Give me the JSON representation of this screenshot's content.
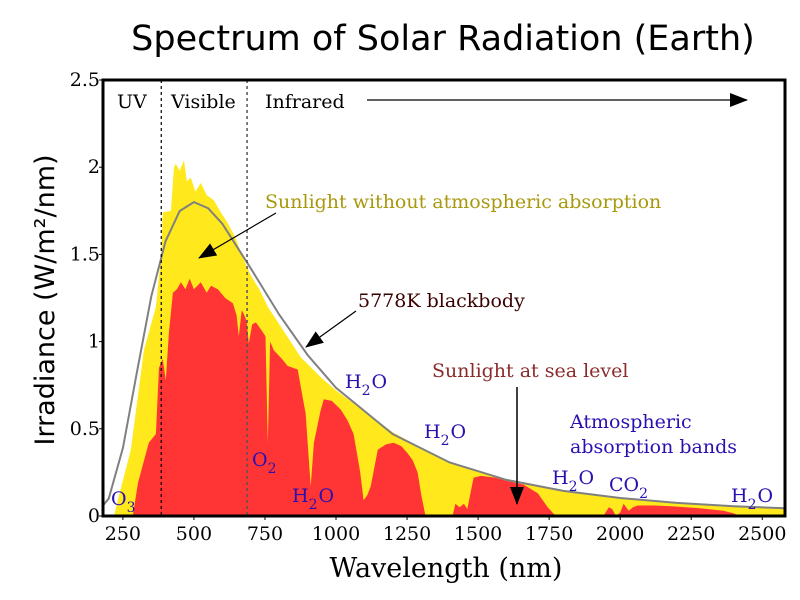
{
  "chart_data": {
    "type": "area",
    "title": "Spectrum of Solar Radiation (Earth)",
    "xlabel": "Wavelength (nm)",
    "ylabel": "Irradiance (W/m²/nm)",
    "xlim": [
      180,
      2580
    ],
    "ylim": [
      0,
      2.5
    ],
    "xticks": [
      250,
      500,
      750,
      1000,
      1250,
      1500,
      1750,
      2000,
      2250,
      2500
    ],
    "yticks": [
      0,
      0.5,
      1,
      1.5,
      2,
      2.5
    ],
    "ytick_labels": [
      "0",
      "0.5",
      "1",
      "1.5",
      "2",
      "2.5"
    ],
    "grid": false,
    "region_boundaries": [
      385,
      687
    ],
    "regions": [
      "UV",
      "Visible",
      "Infrared"
    ],
    "colors": {
      "extraterrestrial": "#ffe81c",
      "sea_level": "#ff3535",
      "blackbody": "#808080",
      "label_extraterrestrial": "#a8980c",
      "label_blackbody": "#3a0000",
      "label_sea_level": "#8a2c2c",
      "label_absorption": "#2a10b0"
    },
    "series": [
      {
        "name": "Sunlight without atmospheric absorption",
        "type": "area",
        "points": [
          [
            218,
            0
          ],
          [
            278,
            0.38
          ],
          [
            324,
            0.95
          ],
          [
            366,
            1.2
          ],
          [
            385,
            1.5
          ],
          [
            390,
            1.74
          ],
          [
            419,
            1.75
          ],
          [
            430,
            2.0
          ],
          [
            436,
            2.02
          ],
          [
            450,
            1.98
          ],
          [
            465,
            2.04
          ],
          [
            475,
            1.92
          ],
          [
            489,
            1.94
          ],
          [
            505,
            1.86
          ],
          [
            524,
            1.91
          ],
          [
            545,
            1.84
          ],
          [
            570,
            1.81
          ],
          [
            595,
            1.74
          ],
          [
            619,
            1.68
          ],
          [
            645,
            1.6
          ],
          [
            675,
            1.47
          ],
          [
            700,
            1.38
          ],
          [
            730,
            1.3
          ],
          [
            760,
            1.2
          ],
          [
            800,
            1.1
          ],
          [
            876,
            0.91
          ],
          [
            950,
            0.79
          ],
          [
            1000,
            0.72
          ],
          [
            1100,
            0.6
          ],
          [
            1200,
            0.48
          ],
          [
            1300,
            0.39
          ],
          [
            1400,
            0.31
          ],
          [
            1500,
            0.26
          ],
          [
            1600,
            0.21
          ],
          [
            1700,
            0.17
          ],
          [
            1800,
            0.145
          ],
          [
            2000,
            0.105
          ],
          [
            2200,
            0.077
          ],
          [
            2400,
            0.058
          ],
          [
            2580,
            0.045
          ],
          [
            2580,
            0
          ]
        ]
      },
      {
        "name": "Sunlight at sea level",
        "type": "area",
        "points": [
          [
            285,
            0
          ],
          [
            303,
            0.19
          ],
          [
            341,
            0.42
          ],
          [
            366,
            0.47
          ],
          [
            377,
            0.85
          ],
          [
            390,
            0.9
          ],
          [
            401,
            0.78
          ],
          [
            412,
            1.05
          ],
          [
            426,
            1.28
          ],
          [
            440,
            1.3
          ],
          [
            454,
            1.34
          ],
          [
            470,
            1.3
          ],
          [
            485,
            1.36
          ],
          [
            500,
            1.3
          ],
          [
            524,
            1.34
          ],
          [
            545,
            1.28
          ],
          [
            560,
            1.32
          ],
          [
            584,
            1.3
          ],
          [
            610,
            1.25
          ],
          [
            637,
            1.22
          ],
          [
            650,
            1.15
          ],
          [
            658,
            1.03
          ],
          [
            668,
            1.18
          ],
          [
            675,
            1.16
          ],
          [
            685,
            1.12
          ],
          [
            693,
            0.99
          ],
          [
            705,
            1.1
          ],
          [
            718,
            1.11
          ],
          [
            740,
            1.06
          ],
          [
            752,
            1.03
          ],
          [
            760,
            0.42
          ],
          [
            768,
            1.0
          ],
          [
            781,
            0.95
          ],
          [
            810,
            0.9
          ],
          [
            830,
            0.86
          ],
          [
            865,
            0.84
          ],
          [
            886,
            0.65
          ],
          [
            893,
            0.59
          ],
          [
            911,
            0.17
          ],
          [
            922,
            0.42
          ],
          [
            945,
            0.6
          ],
          [
            957,
            0.67
          ],
          [
            985,
            0.66
          ],
          [
            1017,
            0.61
          ],
          [
            1040,
            0.55
          ],
          [
            1062,
            0.47
          ],
          [
            1085,
            0.25
          ],
          [
            1097,
            0.09
          ],
          [
            1110,
            0.12
          ],
          [
            1122,
            0.17
          ],
          [
            1147,
            0.38
          ],
          [
            1175,
            0.41
          ],
          [
            1203,
            0.42
          ],
          [
            1230,
            0.4
          ],
          [
            1252,
            0.36
          ],
          [
            1270,
            0.32
          ],
          [
            1287,
            0.25
          ],
          [
            1300,
            0.12
          ],
          [
            1315,
            0
          ],
          [
            1410,
            0
          ],
          [
            1420,
            0.07
          ],
          [
            1435,
            0.05
          ],
          [
            1450,
            0.07
          ],
          [
            1462,
            0.04
          ],
          [
            1484,
            0.22
          ],
          [
            1510,
            0.23
          ],
          [
            1560,
            0.22
          ],
          [
            1605,
            0.2
          ],
          [
            1660,
            0.18
          ],
          [
            1710,
            0.13
          ],
          [
            1745,
            0.05
          ],
          [
            1773,
            0
          ],
          [
            1941,
            0
          ],
          [
            1960,
            0.05
          ],
          [
            1972,
            0.04
          ],
          [
            1985,
            0
          ],
          [
            2000,
            0.02
          ],
          [
            2012,
            0.07
          ],
          [
            2030,
            0.03
          ],
          [
            2045,
            0.05
          ],
          [
            2061,
            0.06
          ],
          [
            2120,
            0.06
          ],
          [
            2187,
            0.055
          ],
          [
            2280,
            0.045
          ],
          [
            2363,
            0.03
          ],
          [
            2400,
            0.015
          ],
          [
            2420,
            0
          ]
        ]
      },
      {
        "name": "5778K blackbody",
        "type": "line",
        "points": [
          [
            180,
            0.06
          ],
          [
            200,
            0.1
          ],
          [
            250,
            0.39
          ],
          [
            300,
            0.83
          ],
          [
            350,
            1.26
          ],
          [
            400,
            1.575
          ],
          [
            450,
            1.749
          ],
          [
            500,
            1.8
          ],
          [
            550,
            1.765
          ],
          [
            600,
            1.676
          ],
          [
            700,
            1.42
          ],
          [
            800,
            1.155
          ],
          [
            900,
            0.923
          ],
          [
            1000,
            0.735
          ],
          [
            1200,
            0.469
          ],
          [
            1400,
            0.307
          ],
          [
            1600,
            0.207
          ],
          [
            1800,
            0.144
          ],
          [
            2000,
            0.103
          ],
          [
            2200,
            0.075
          ],
          [
            2400,
            0.056
          ],
          [
            2580,
            0.044
          ]
        ]
      }
    ],
    "annotations": {
      "extraterrestrial": "Sunlight without atmospheric absorption",
      "blackbody": "5778K blackbody",
      "sea_level": "Sunlight at sea level",
      "absorption_line1": "Atmospheric",
      "absorption_line2": "absorption bands"
    },
    "molecules": [
      {
        "base": "O",
        "sub": "3",
        "tail": ""
      },
      {
        "base": "O",
        "sub": "2",
        "tail": ""
      },
      {
        "base": "H",
        "sub": "2",
        "tail": "O"
      },
      {
        "base": "H",
        "sub": "2",
        "tail": "O"
      },
      {
        "base": "H",
        "sub": "2",
        "tail": "O"
      },
      {
        "base": "H",
        "sub": "2",
        "tail": "O"
      },
      {
        "base": "CO",
        "sub": "2",
        "tail": ""
      },
      {
        "base": "H",
        "sub": "2",
        "tail": "O"
      }
    ]
  }
}
